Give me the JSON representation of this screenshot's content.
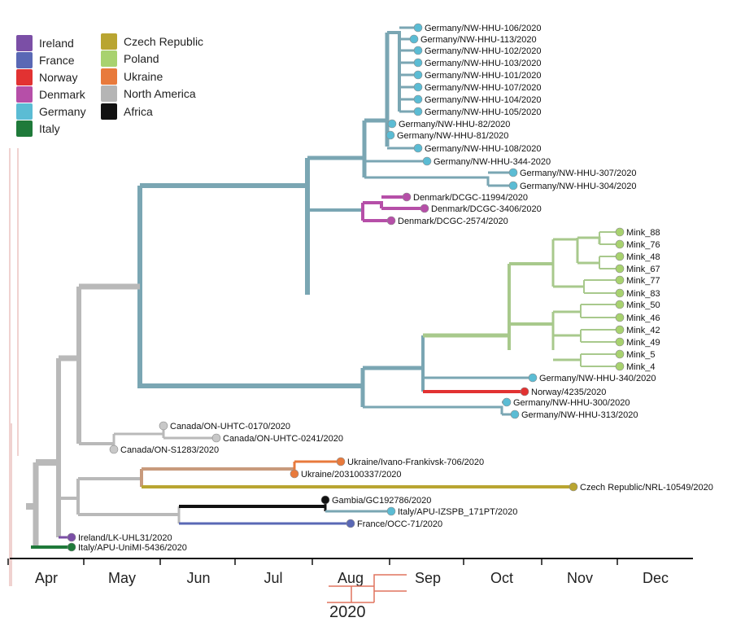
{
  "legend": [
    {
      "label": "Ireland",
      "color": "#7b4fa6"
    },
    {
      "label": "France",
      "color": "#5a68b5"
    },
    {
      "label": "Norway",
      "color": "#e23232"
    },
    {
      "label": "Denmark",
      "color": "#b64fa8"
    },
    {
      "label": "Germany",
      "color": "#5bbcd4"
    },
    {
      "label": "Italy",
      "color": "#1f7a3a"
    },
    {
      "label": "Czech Republic",
      "color": "#b9a531"
    },
    {
      "label": "Poland",
      "color": "#a8d26f"
    },
    {
      "label": "Ukraine",
      "color": "#e87a3c"
    },
    {
      "label": "North America",
      "color": "#b5b5b5"
    },
    {
      "label": "Africa",
      "color": "#111111"
    }
  ],
  "axis": {
    "months": [
      "Apr",
      "May",
      "Jun",
      "Jul",
      "Aug",
      "Sep",
      "Oct",
      "Nov",
      "Dec"
    ],
    "year": "2020"
  },
  "tips": [
    "Germany/NW-HHU-106/2020",
    "Germany/NW-HHU-113/2020",
    "Germany/NW-HHU-102/2020",
    "Germany/NW-HHU-103/2020",
    "Germany/NW-HHU-101/2020",
    "Germany/NW-HHU-107/2020",
    "Germany/NW-HHU-104/2020",
    "Germany/NW-HHU-105/2020",
    "Germany/NW-HHU-82/2020",
    "Germany/NW-HHU-81/2020",
    "Germany/NW-HHU-108/2020",
    "Germany/NW-HHU-344-2020",
    "Germany/NW-HHU-307/2020",
    "Germany/NW-HHU-304/2020",
    "Denmark/DCGC-11994/2020",
    "Denmark/DCGC-3406/2020",
    "Denmark/DCGC-2574/2020",
    "Mink_88",
    "Mink_76",
    "Mink_48",
    "Mink_67",
    "Mink_77",
    "Mink_83",
    "Mink_50",
    "Mink_46",
    "Mink_42",
    "Mink_49",
    "Mink_5",
    "Mink_4",
    "Germany/NW-HHU-340/2020",
    "Norway/4235/2020",
    "Germany/NW-HHU-300/2020",
    "Germany/NW-HHU-313/2020",
    "Canada/ON-UHTC-0170/2020",
    "Canada/ON-UHTC-0241/2020",
    "Canada/ON-S1283/2020",
    "Ukraine/Ivano-Frankivsk-706/2020",
    "Ukraine/203100337/2020",
    "Czech Republic/NRL-10549/2020",
    "Gambia/GC192786/2020",
    "Italy/APU-IZSPB_171PT/2020",
    "France/OCC-71/2020",
    "Ireland/LK-UHL31/2020",
    "Italy/APU-UniMI-5436/2020"
  ]
}
